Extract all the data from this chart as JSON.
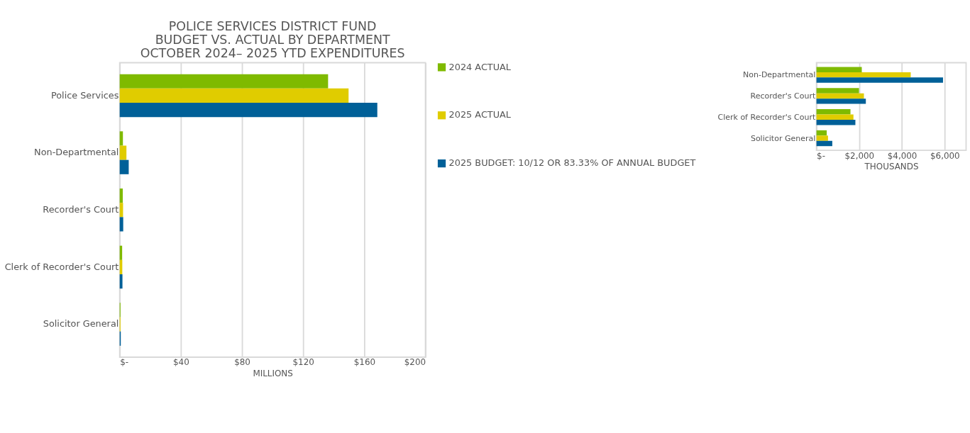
{
  "chart_data": [
    {
      "type": "bar",
      "orientation": "horizontal",
      "title": [
        "POLICE SERVICES DISTRICT FUND",
        "BUDGET VS. ACTUAL BY DEPARTMENT",
        "OCTOBER 2024– 2025 YTD EXPENDITURES"
      ],
      "xlabel": "MILLIONS",
      "categories": [
        "Police Services",
        "Non-Departmental",
        "Recorder's Court",
        "Clerk of Recorder's Court",
        "Solicitor General"
      ],
      "series": [
        {
          "name": "2024 ACTUAL",
          "color": "#7fba00",
          "values": [
            136.3,
            2.1,
            2.0,
            1.6,
            0.5
          ]
        },
        {
          "name": "2025 ACTUAL",
          "color": "#e0cc00",
          "values": [
            149.7,
            4.4,
            2.2,
            1.7,
            0.5
          ]
        },
        {
          "name": "2025 BUDGET: 10/12 OR 83.33% OF ANNUAL BUDGET",
          "color": "#006098",
          "values": [
            168.5,
            5.9,
            2.3,
            1.8,
            0.7
          ]
        }
      ],
      "xlim": [
        0,
        200
      ],
      "xticks": [
        {
          "value": 0,
          "label": "$-"
        },
        {
          "value": 40,
          "label": "$40"
        },
        {
          "value": 80,
          "label": "$80"
        },
        {
          "value": 120,
          "label": "$120"
        },
        {
          "value": 160,
          "label": "$160"
        },
        {
          "value": 200,
          "label": "$200"
        }
      ],
      "grid": "x",
      "legend": "right"
    },
    {
      "type": "bar",
      "orientation": "horizontal",
      "xlabel": "THOUSANDS",
      "categories": [
        "Non-Departmental",
        "Recorder's Court",
        "Clerk of Recorder's Court",
        "Solicitor General"
      ],
      "series": [
        {
          "color": "#7fba00",
          "values": [
            2120,
            1990,
            1590,
            480
          ]
        },
        {
          "color": "#e0cc00",
          "values": [
            4410,
            2220,
            1730,
            540
          ]
        },
        {
          "color": "#006098",
          "values": [
            5920,
            2310,
            1820,
            740
          ]
        }
      ],
      "xlim": [
        0,
        7000
      ],
      "xticks": [
        {
          "value": 0,
          "label": "$-"
        },
        {
          "value": 2000,
          "label": "$2,000"
        },
        {
          "value": 4000,
          "label": "$4,000"
        },
        {
          "value": 6000,
          "label": "$6,000"
        }
      ],
      "grid": "x",
      "legend": false
    }
  ]
}
